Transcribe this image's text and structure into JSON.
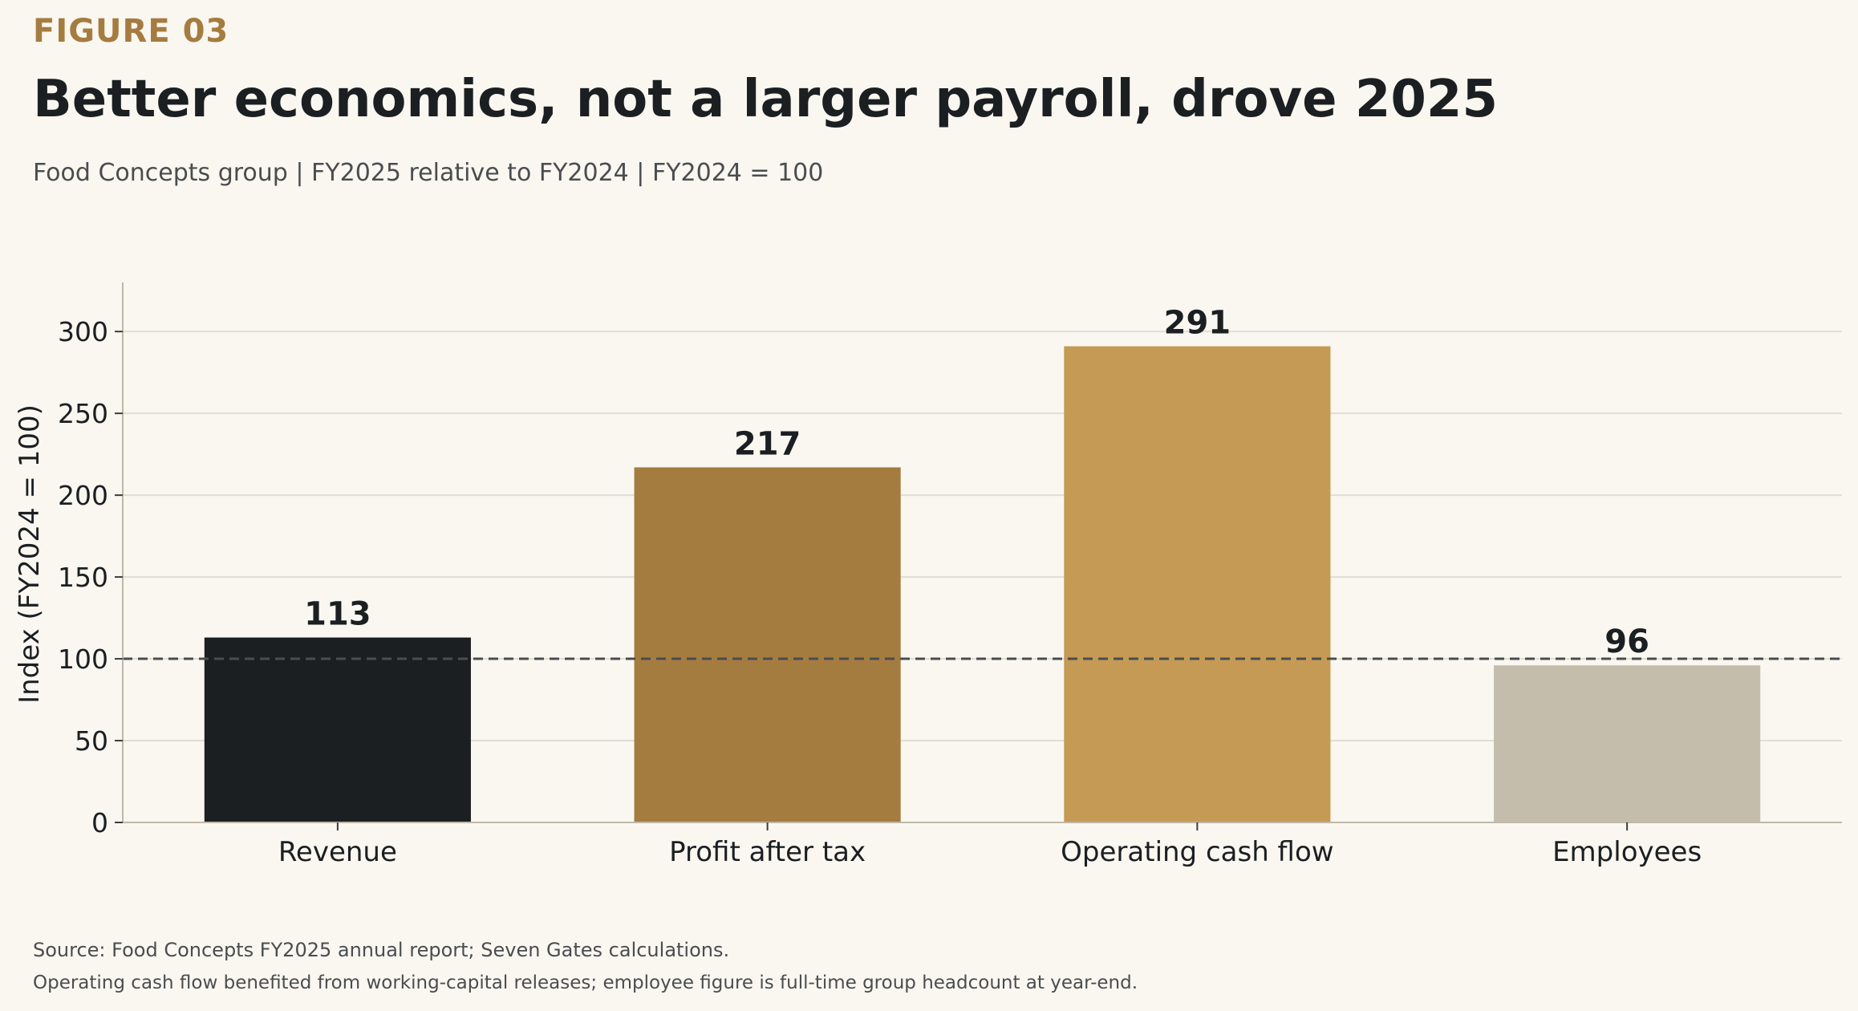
{
  "figure_label": "FIGURE 03",
  "title": "Better economics, not a larger payroll, drove 2025",
  "subtitle": "Food Concepts group | FY2025 relative to FY2024 | FY2024 = 100",
  "footer": {
    "source": "Source: Food Concepts FY2025 annual report; Seven Gates calculations.",
    "note": "Operating cash flow benefited from working-capital releases; employee figure is full-time group headcount at year-end."
  },
  "chart_data": {
    "type": "bar",
    "categories": [
      "Revenue",
      "Profit after tax",
      "Operating cash flow",
      "Employees"
    ],
    "values": [
      113,
      217,
      291,
      96
    ],
    "data_labels": [
      "113",
      "217",
      "291",
      "96"
    ],
    "bar_colors": [
      "#1b1f22",
      "#a57c40",
      "#c59a54",
      "#c5bdab"
    ],
    "ylabel": "Index (FY2024 = 100)",
    "ylim": [
      0,
      330
    ],
    "yticks": [
      0,
      50,
      100,
      150,
      200,
      250,
      300
    ],
    "baseline": 100,
    "grid": true
  }
}
